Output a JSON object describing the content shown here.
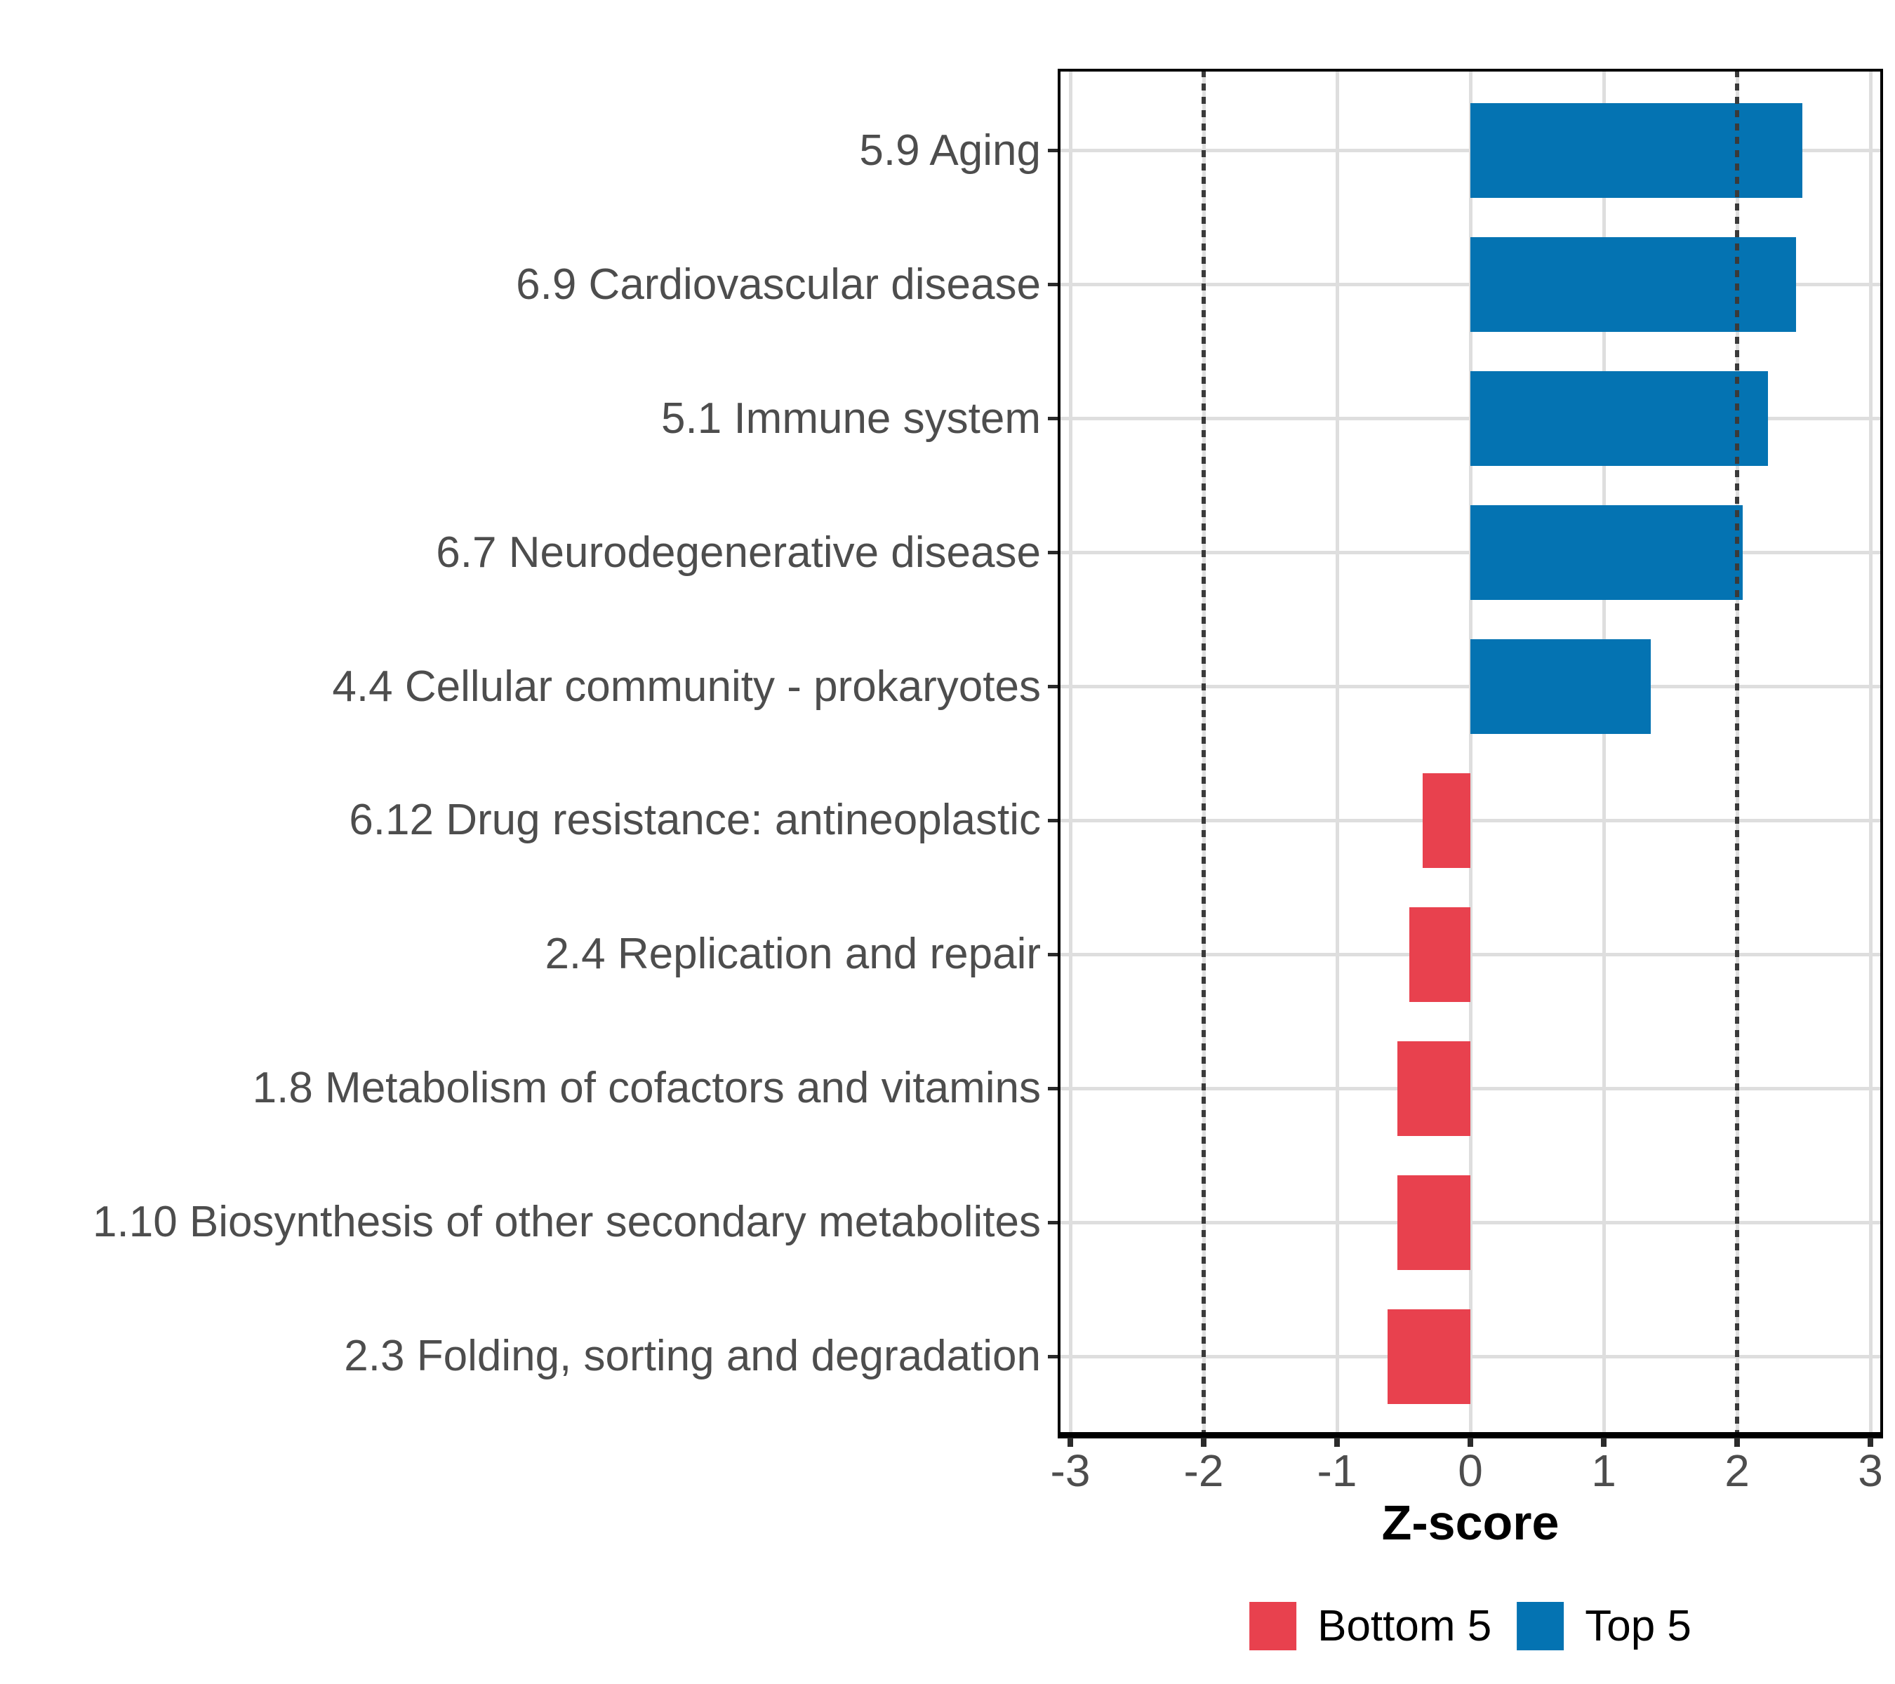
{
  "chart_data": {
    "type": "bar",
    "orientation": "horizontal",
    "title": "",
    "xlabel": "Z-score",
    "ylabel": "",
    "xlim": [
      -3.08,
      3.08
    ],
    "x_ticks": [
      -3,
      -2,
      -1,
      0,
      1,
      2,
      3
    ],
    "x_tick_labels": [
      "-3",
      "-2",
      "-1",
      "0",
      "1",
      "2",
      "3"
    ],
    "reference_lines": [
      -2,
      2
    ],
    "reference_line_style": "dotted",
    "grid": true,
    "legend_position": "bottom",
    "categories": [
      "5.9 Aging",
      "6.9 Cardiovascular disease",
      "5.1 Immune system",
      "6.7 Neurodegenerative disease",
      "4.4 Cellular community - prokaryotes",
      "6.12 Drug resistance: antineoplastic",
      "2.4 Replication and repair",
      "1.8 Metabolism of cofactors and vitamins",
      "1.10 Biosynthesis of other secondary metabolites",
      "2.3 Folding, sorting and degradation"
    ],
    "values": [
      2.49,
      2.44,
      2.23,
      2.04,
      1.35,
      -0.36,
      -0.46,
      -0.55,
      -0.55,
      -0.62
    ],
    "groups": [
      "Top 5",
      "Top 5",
      "Top 5",
      "Top 5",
      "Top 5",
      "Bottom 5",
      "Bottom 5",
      "Bottom 5",
      "Bottom 5",
      "Bottom 5"
    ],
    "series": [
      {
        "name": "Bottom 5",
        "color": "#E8414E"
      },
      {
        "name": "Top 5",
        "color": "#0473B2"
      }
    ]
  },
  "legend": {
    "entries": [
      {
        "label": "Bottom 5",
        "color": "#E8414E"
      },
      {
        "label": "Top 5",
        "color": "#0473B2"
      }
    ]
  },
  "colors": {
    "top5": "#0473B2",
    "bottom5": "#E8414E",
    "grid": "#DEDEDE",
    "refline": "#3A3A3A",
    "axis_text": "#4D4D4D",
    "title_text": "#000000",
    "panel_border": "#000000",
    "background": "#FFFFFF"
  }
}
